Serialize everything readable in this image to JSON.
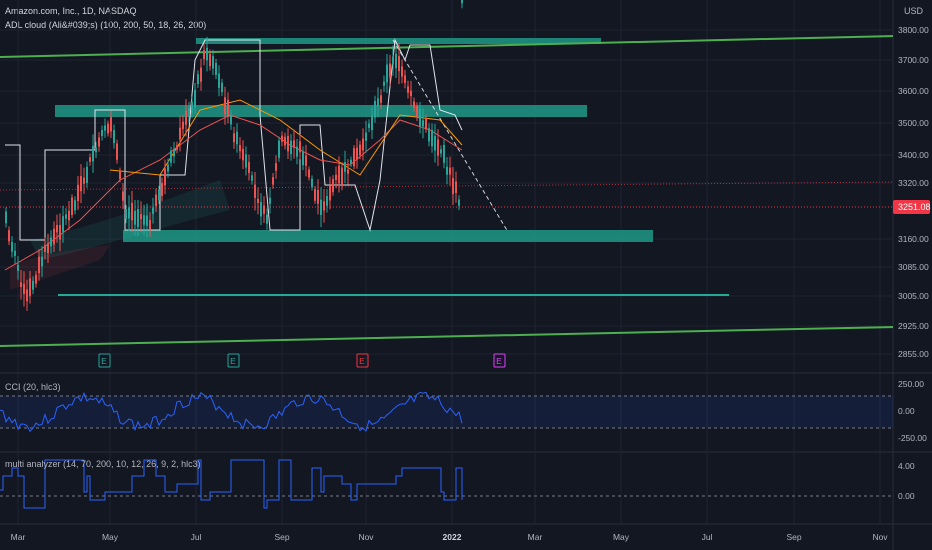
{
  "header": {
    "symbol_line": "Amazon.com, Inc., 1D, NASDAQ",
    "indicator_line": "ADL cloud (Ali&#039;s) (100, 200, 50, 18, 26, 200)"
  },
  "price_axis": {
    "currency": "USD",
    "labels": [
      "3800.00",
      "3700.00",
      "3600.00",
      "3500.00",
      "3400.00",
      "3320.00",
      "3160.00",
      "3085.00",
      "3005.00",
      "2925.00",
      "2855.00"
    ],
    "last_price": "3251.08",
    "last_price_color": "#f23645"
  },
  "cci_panel": {
    "title": "CCI (20, hlc3)",
    "labels": [
      "250.00",
      "0.00",
      "-250.00"
    ]
  },
  "multi_panel": {
    "title": "multi analyzer (14, 70, 200, 10, 12, 26, 9, 2, hlc3)",
    "labels": [
      "4.00",
      "0.00"
    ]
  },
  "time_axis": {
    "labels": [
      "Mar",
      "May",
      "Jul",
      "Sep",
      "Nov",
      "2022",
      "Mar",
      "May",
      "Jul",
      "Sep",
      "Nov"
    ]
  },
  "earnings_markers": [
    {
      "letter": "E",
      "color": "#26a69a"
    },
    {
      "letter": "E",
      "color": "#26a69a"
    },
    {
      "letter": "E",
      "color": "#f23645"
    },
    {
      "letter": "E",
      "color": "#e040fb"
    }
  ],
  "colors": {
    "background": "#131722",
    "channel": "#4caf50",
    "zone": "#22ab94",
    "cci_line": "#2962ff",
    "candle_up": "#26a69a",
    "candle_down": "#ef5350"
  },
  "chart_data": {
    "type": "candlestick",
    "price_range": [
      2855,
      3800
    ],
    "annotations": [
      "ascending channel",
      "support/resistance zones",
      "dashed trendline"
    ]
  }
}
